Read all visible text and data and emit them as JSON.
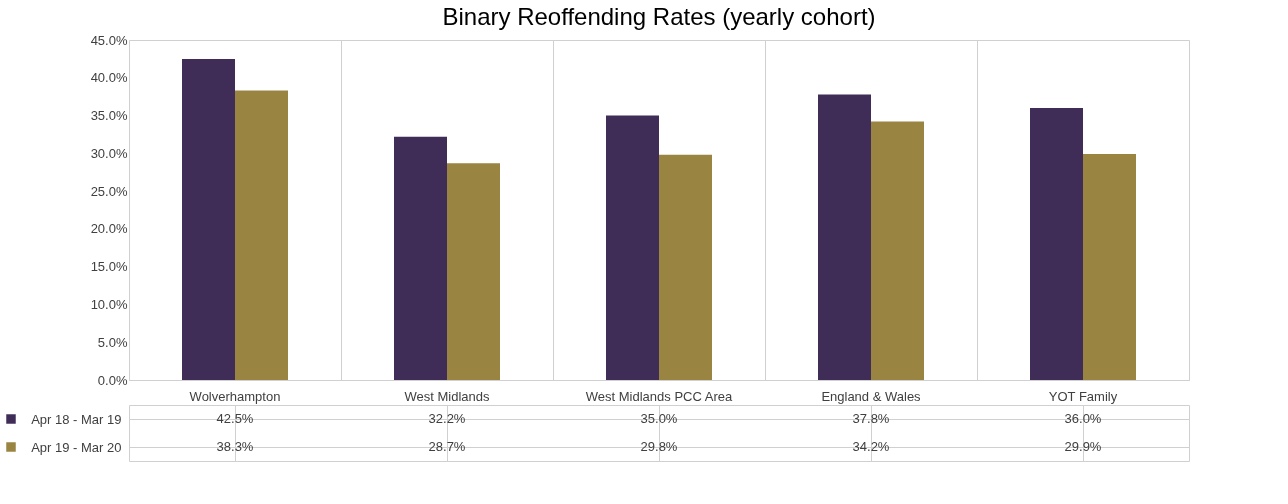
{
  "chart_data": {
    "type": "bar",
    "title": "Binary Reoffending Rates (yearly cohort)",
    "categories": [
      "Wolverhampton",
      "West Midlands",
      "West Midlands PCC Area",
      "England & Wales",
      "YOT Family"
    ],
    "series": [
      {
        "name": "Apr 18 - Mar 19",
        "color": "#3f2d58",
        "values": [
          42.5,
          32.2,
          35.0,
          37.8,
          36.0
        ],
        "value_labels": [
          "42.5%",
          "32.2%",
          "35.0%",
          "37.8%",
          "36.0%"
        ]
      },
      {
        "name": "Apr 19 - Mar 20",
        "color": "#9a8442",
        "values": [
          38.3,
          28.7,
          29.8,
          34.2,
          29.9
        ],
        "value_labels": [
          "38.3%",
          "28.7%",
          "29.8%",
          "34.2%",
          "29.9%"
        ]
      }
    ],
    "ylim": [
      0,
      45
    ],
    "yticks": [
      {
        "value": 0,
        "label": "0.0%"
      },
      {
        "value": 5,
        "label": "5.0%"
      },
      {
        "value": 10,
        "label": "10.0%"
      },
      {
        "value": 15,
        "label": "15.0%"
      },
      {
        "value": 20,
        "label": "20.0%"
      },
      {
        "value": 25,
        "label": "25.0%"
      },
      {
        "value": 30,
        "label": "30.0%"
      },
      {
        "value": 35,
        "label": "35.0%"
      },
      {
        "value": 40,
        "label": "40.0%"
      },
      {
        "value": 45,
        "label": "45.0%"
      }
    ],
    "grid": false,
    "legend": "bottom"
  }
}
